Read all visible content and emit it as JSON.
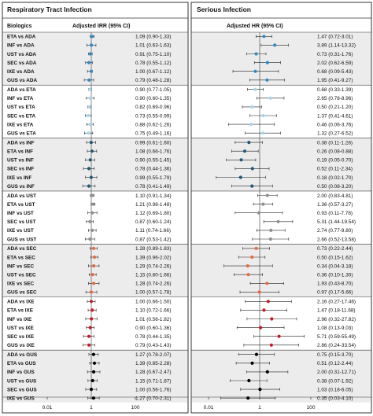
{
  "panel_titles": {
    "left": "Respiratory Tract Infection",
    "right": "Serious Infection"
  },
  "column_headers": {
    "biologics": "Biologics",
    "left": "Adjusted IRR (95% CI)",
    "right": "Adjusted HR (95% CI)"
  },
  "axis_ticks": [
    "0.01",
    "1",
    "100"
  ],
  "group_colors": [
    "#2e8bc7",
    "#a7d4ee",
    "#1e5a78",
    "#8f8f8f",
    "#e56b3f",
    "#c41b24",
    "#000000"
  ],
  "chart_data": [
    {
      "type": "forest",
      "title": "Respiratory Tract Infection",
      "subtitle": "Adjusted IRR (95% CI)",
      "x_scale": "log",
      "xlim": [
        0.01,
        100
      ],
      "reference_line": 1,
      "groups": [
        {
          "rows": [
            {
              "label": "ETA vs ADA",
              "est": 1.09,
              "lo": 0.9,
              "hi": 1.33,
              "text": "1.09 (0.90-1.33)"
            },
            {
              "label": "INF vs ADA",
              "est": 1.01,
              "lo": 0.63,
              "hi": 1.63,
              "text": "1.01 (0.63-1.63)"
            },
            {
              "label": "UST vs ADA",
              "est": 0.91,
              "lo": 0.75,
              "hi": 1.1,
              "text": "0.91 (0.75-1.10)"
            },
            {
              "label": "SEC vs ADA",
              "est": 0.78,
              "lo": 0.55,
              "hi": 1.12,
              "text": "0.78 (0.55-1.12)"
            },
            {
              "label": "IXE vs ADA",
              "est": 1.0,
              "lo": 0.67,
              "hi": 1.12,
              "text": "1.00 (0.67-1.12)"
            },
            {
              "label": "GUS vs ADA",
              "est": 0.79,
              "lo": 0.48,
              "hi": 1.28,
              "text": "0.79 (0.48-1.28)"
            }
          ]
        },
        {
          "rows": [
            {
              "label": "ADA vs ETA",
              "est": 0.9,
              "lo": 0.77,
              "hi": 1.05,
              "text": "0.90 (0.77-1.05)"
            },
            {
              "label": "INF vs ETA",
              "est": 0.9,
              "lo": 0.6,
              "hi": 1.35,
              "text": "0.90 (0.60-1.35)"
            },
            {
              "label": "UST vs ETA",
              "est": 0.82,
              "lo": 0.69,
              "hi": 0.96,
              "text": "0.82 (0.69-0.96)"
            },
            {
              "label": "SEC vs ETA",
              "est": 0.73,
              "lo": 0.55,
              "hi": 0.99,
              "text": "0.73 (0.55-0.99)"
            },
            {
              "label": "IXE vs ETA",
              "est": 0.88,
              "lo": 0.62,
              "hi": 1.26,
              "text": "0.88 (0.62-1.26)"
            },
            {
              "label": "GUS vs ETA",
              "est": 0.75,
              "lo": 0.49,
              "hi": 1.16,
              "text": "0.75 (0.49-1.16)"
            }
          ]
        },
        {
          "rows": [
            {
              "label": "ADA vs INF",
              "est": 0.99,
              "lo": 0.61,
              "hi": 1.6,
              "text": "0.99 (0.61-1.60)"
            },
            {
              "label": "ETA vs INF",
              "est": 1.08,
              "lo": 0.66,
              "hi": 1.76,
              "text": "1.08 (0.66-1.76)"
            },
            {
              "label": "UST vs INF",
              "est": 0.9,
              "lo": 0.55,
              "hi": 1.45,
              "text": "0.90 (0.55-1.45)"
            },
            {
              "label": "SEC vs INF",
              "est": 0.78,
              "lo": 0.44,
              "hi": 1.36,
              "text": "0.78 (0.44-1.36)"
            },
            {
              "label": "IXE vs INF",
              "est": 0.99,
              "lo": 0.55,
              "hi": 1.79,
              "text": "0.99 (0.55-1.79)"
            },
            {
              "label": "GUS vs INF",
              "est": 0.78,
              "lo": 0.41,
              "hi": 1.49,
              "text": "0.78 (0.41-1.49)"
            }
          ]
        },
        {
          "rows": [
            {
              "label": "ADA vs UST",
              "est": 1.1,
              "lo": 0.91,
              "hi": 1.34,
              "text": "1.10 (0.91-1.34)"
            },
            {
              "label": "ETA vs UST",
              "est": 1.21,
              "lo": 0.98,
              "hi": 1.48,
              "text": "1.21 (0.98-1.48)"
            },
            {
              "label": "INF vs UST",
              "est": 1.12,
              "lo": 0.69,
              "hi": 1.8,
              "text": "1.12 (0.69-1.80)"
            },
            {
              "label": "SEC vs UST",
              "est": 0.87,
              "lo": 0.6,
              "hi": 1.24,
              "text": "0.87 (0.60-1.24)"
            },
            {
              "label": "IXE vs UST",
              "est": 1.11,
              "lo": 0.74,
              "hi": 1.66,
              "text": "1.11 (0.74-1.66)"
            },
            {
              "label": "GUS vs UST",
              "est": 0.87,
              "lo": 0.53,
              "hi": 1.42,
              "text": "0.87 (0.53-1.42)"
            }
          ]
        },
        {
          "rows": [
            {
              "label": "ADA vs SEC",
              "est": 1.28,
              "lo": 0.89,
              "hi": 1.83,
              "text": "1.28 (0.89-1.83)"
            },
            {
              "label": "ETA vs SEC",
              "est": 1.39,
              "lo": 0.96,
              "hi": 2.02,
              "text": "1.39 (0.96-2.02)"
            },
            {
              "label": "INF vs SEC",
              "est": 1.29,
              "lo": 0.74,
              "hi": 2.26,
              "text": "1.29 (0.74-2.26)"
            },
            {
              "label": "UST vs SEC",
              "est": 1.15,
              "lo": 0.8,
              "hi": 1.66,
              "text": "1.15 (0.80-1.66)"
            },
            {
              "label": "IXE vs SEC",
              "est": 1.28,
              "lo": 0.74,
              "hi": 2.26,
              "text": "1.28 (0.74-2.26)"
            },
            {
              "label": "GUS vs SEC",
              "est": 1.0,
              "lo": 0.57,
              "hi": 1.78,
              "text": "1.00 (0.57-1.78)"
            }
          ]
        },
        {
          "rows": [
            {
              "label": "ADA vs IXE",
              "est": 1.0,
              "lo": 0.66,
              "hi": 1.5,
              "text": "1.00 (0.66-1.50)"
            },
            {
              "label": "ETA vs IXE",
              "est": 1.1,
              "lo": 0.72,
              "hi": 1.66,
              "text": "1.10 (0.72-1.66)"
            },
            {
              "label": "INF vs IXE",
              "est": 1.01,
              "lo": 0.56,
              "hi": 1.82,
              "text": "1.01 (0.56-1.82)"
            },
            {
              "label": "UST vs IXE",
              "est": 0.9,
              "lo": 0.6,
              "hi": 1.36,
              "text": "0.90 (0.60-1.36)"
            },
            {
              "label": "SEC vs IXE",
              "est": 0.78,
              "lo": 0.44,
              "hi": 1.35,
              "text": "0.78 (0.44-1.35)"
            },
            {
              "label": "GUS vs IXE",
              "est": 0.79,
              "lo": 0.43,
              "hi": 1.43,
              "text": "0.79 (0.43-1.43)"
            }
          ]
        },
        {
          "rows": [
            {
              "label": "ADA vs GUS",
              "est": 1.27,
              "lo": 0.78,
              "hi": 2.07,
              "text": "1.27 (0.78-2.07)"
            },
            {
              "label": "ETA vs GUS",
              "est": 1.39,
              "lo": 0.85,
              "hi": 2.28,
              "text": "1.39 (0.85-2.28)"
            },
            {
              "label": "INF vs GUS",
              "est": 1.28,
              "lo": 0.67,
              "hi": 2.47,
              "text": "1.28 (0.67-2.47)"
            },
            {
              "label": "UST vs GUS",
              "est": 1.15,
              "lo": 0.71,
              "hi": 1.87,
              "text": "1.15 (0.71-1.87)"
            },
            {
              "label": "SEC vs GUS",
              "est": 1.0,
              "lo": 0.56,
              "hi": 1.76,
              "text": "1.00 (0.56-1.76)"
            },
            {
              "label": "IXE vs GUS",
              "est": 1.27,
              "lo": 0.7,
              "hi": 2.31,
              "text": "1.27 (0.70-2.31)"
            }
          ]
        }
      ]
    },
    {
      "type": "forest",
      "title": "Serious Infection",
      "subtitle": "Adjusted HR (95% CI)",
      "x_scale": "log",
      "xlim": [
        0.01,
        100
      ],
      "reference_line": 1,
      "groups": [
        {
          "rows": [
            {
              "label": "ETA vs ADA",
              "est": 1.47,
              "lo": 0.72,
              "hi": 3.01,
              "text": "1.47 (0.72-3.01)"
            },
            {
              "label": "INF vs ADA",
              "est": 3.89,
              "lo": 1.14,
              "hi": 13.32,
              "text": "3.89 (1.14-13.32)"
            },
            {
              "label": "UST vs ADA",
              "est": 0.73,
              "lo": 0.31,
              "hi": 1.76,
              "text": "0.73 (0.31-1.76)"
            },
            {
              "label": "SEC vs ADA",
              "est": 2.02,
              "lo": 0.62,
              "hi": 6.59,
              "text": "2.02 (0.62-6.59)"
            },
            {
              "label": "IXE vs ADA",
              "est": 0.68,
              "lo": 0.09,
              "hi": 5.43,
              "text": "0.68 (0.09-5.43)"
            },
            {
              "label": "GUS vs ADA",
              "est": 1.95,
              "lo": 0.41,
              "hi": 9.27,
              "text": "1.95 (0.41-9.27)"
            }
          ]
        },
        {
          "rows": [
            {
              "label": "ADA vs ETA",
              "est": 0.68,
              "lo": 0.33,
              "hi": 1.39,
              "text": "0.68 (0.33-1.39)"
            },
            {
              "label": "INF vs ETA",
              "est": 2.65,
              "lo": 0.78,
              "hi": 8.96,
              "text": "2.65 (0.78-8.96)"
            },
            {
              "label": "UST vs ETA",
              "est": 0.5,
              "lo": 0.21,
              "hi": 1.2,
              "text": "0.50 (0.21-1.20)"
            },
            {
              "label": "SEC vs ETA",
              "est": 1.37,
              "lo": 0.41,
              "hi": 4.61,
              "text": "1.37 (0.41-4.61)"
            },
            {
              "label": "IXE vs ETA",
              "est": 0.46,
              "lo": 0.06,
              "hi": 3.76,
              "text": "0.46 (0.06-3.76)"
            },
            {
              "label": "GUS vs ETA",
              "est": 1.32,
              "lo": 0.27,
              "hi": 6.52,
              "text": "1.32 (0.27-6.52)"
            }
          ]
        },
        {
          "rows": [
            {
              "label": "ADA vs INF",
              "est": 0.38,
              "lo": 0.11,
              "hi": 1.28,
              "text": "0.38 (0.11-1.28)"
            },
            {
              "label": "ETA vs INF",
              "est": 0.26,
              "lo": 0.08,
              "hi": 0.88,
              "text": "0.26 (0.08-0.88)"
            },
            {
              "label": "UST vs INF",
              "est": 0.19,
              "lo": 0.05,
              "hi": 0.7,
              "text": "0.19 (0.05-0.70)"
            },
            {
              "label": "SEC vs INF",
              "est": 0.52,
              "lo": 0.11,
              "hi": 2.34,
              "text": "0.52 (0.11-2.34)"
            },
            {
              "label": "IXE vs INF",
              "est": 0.18,
              "lo": 0.02,
              "hi": 1.7,
              "text": "0.18 (0.02-1.70)"
            },
            {
              "label": "GUS vs INF",
              "est": 0.5,
              "lo": 0.08,
              "hi": 3.2,
              "text": "0.50 (0.08-3.20)"
            }
          ]
        },
        {
          "rows": [
            {
              "label": "ADA vs UST",
              "est": 2.0,
              "lo": 0.83,
              "hi": 4.81,
              "text": "2.00 (0.83-4.81)"
            },
            {
              "label": "ETA vs UST",
              "est": 1.36,
              "lo": 0.57,
              "hi": 3.27,
              "text": "1.36 (0.57-3.27)"
            },
            {
              "label": "INF vs UST",
              "est": 0.93,
              "lo": 0.11,
              "hi": 7.78,
              "text": "0.93 (0.11-7.78)"
            },
            {
              "label": "SEC vs UST",
              "est": 5.31,
              "lo": 1.44,
              "hi": 19.54,
              "text": "5.31 (1.44-19.54)"
            },
            {
              "label": "IXE vs UST",
              "est": 2.74,
              "lo": 0.77,
              "hi": 9.8,
              "text": "2.74 (0.77-9.80)"
            },
            {
              "label": "GUS vs UST",
              "est": 2.66,
              "lo": 0.52,
              "hi": 13.58,
              "text": "2.66 (0.52-13.58)"
            }
          ]
        },
        {
          "rows": [
            {
              "label": "ADA vs SEC",
              "est": 0.73,
              "lo": 0.22,
              "hi": 2.44,
              "text": "0.73 (0.22-2.44)"
            },
            {
              "label": "ETA vs SEC",
              "est": 0.5,
              "lo": 0.15,
              "hi": 1.62,
              "text": "0.50 (0.15-1.62)"
            },
            {
              "label": "INF vs SEC",
              "est": 0.34,
              "lo": 0.04,
              "hi": 3.18,
              "text": "0.34 (0.04-3.18)"
            },
            {
              "label": "UST vs SEC",
              "est": 0.36,
              "lo": 0.1,
              "hi": 1.3,
              "text": "0.36 (0.10-1.30)"
            },
            {
              "label": "IXE vs SEC",
              "est": 1.93,
              "lo": 0.43,
              "hi": 8.7,
              "text": "1.93 (0.43-8.70)"
            },
            {
              "label": "GUS vs SEC",
              "est": 0.97,
              "lo": 0.17,
              "hi": 5.66,
              "text": "0.97 (0.17-5.66)"
            }
          ]
        },
        {
          "rows": [
            {
              "label": "ADA vs IXE",
              "est": 2.16,
              "lo": 0.27,
              "hi": 17.46,
              "text": "2.16 (0.27-17.46)"
            },
            {
              "label": "ETA vs IXE",
              "est": 1.47,
              "lo": 0.18,
              "hi": 11.68,
              "text": "1.47 (0.18-11.68)"
            },
            {
              "label": "INF vs IXE",
              "est": 2.96,
              "lo": 0.32,
              "hi": 27.82,
              "text": "2.96 (0.32-27.82)"
            },
            {
              "label": "UST vs IXE",
              "est": 1.08,
              "lo": 0.13,
              "hi": 9.03,
              "text": "1.08 (0.13-9.03)"
            },
            {
              "label": "SEC vs IXE",
              "est": 5.71,
              "lo": 0.59,
              "hi": 55.49,
              "text": "5.71 (0.59-55.49)"
            },
            {
              "label": "GUS vs IXE",
              "est": 2.86,
              "lo": 0.24,
              "hi": 33.54,
              "text": "2.86 (0.24-33.54)"
            }
          ]
        },
        {
          "rows": [
            {
              "label": "ADA vs GUS",
              "est": 0.75,
              "lo": 0.15,
              "hi": 3.7,
              "text": "0.75 (0.15-3.70)"
            },
            {
              "label": "ETA vs GUS",
              "est": 0.51,
              "lo": 0.12,
              "hi": 2.44,
              "text": "0.51 (0.12-2.44)"
            },
            {
              "label": "INF vs GUS",
              "est": 2.0,
              "lo": 0.31,
              "hi": 12.71,
              "text": "2.00 (0.31-12.71)"
            },
            {
              "label": "UST vs GUS",
              "est": 0.38,
              "lo": 0.07,
              "hi": 1.92,
              "text": "0.38 (0.07-1.92)"
            },
            {
              "label": "SEC vs GUS",
              "est": 1.03,
              "lo": 0.18,
              "hi": 6.05,
              "text": "1.03 (0.18-6.05)"
            },
            {
              "label": "IXE vs GUS",
              "est": 0.35,
              "lo": 0.03,
              "hi": 4.1,
              "text": "0.35 (0.03-4.10)"
            }
          ]
        }
      ]
    }
  ]
}
